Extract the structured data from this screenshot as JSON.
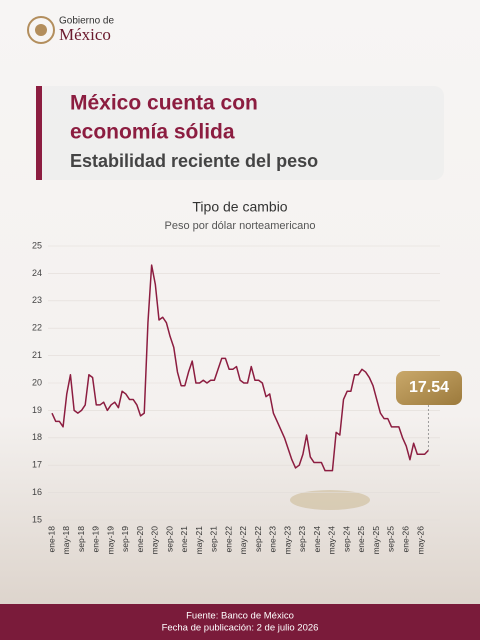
{
  "header": {
    "logo_line1": "Gobierno de",
    "logo_line2": "México",
    "title_line1": "México cuenta con",
    "title_line2": "economía sólida",
    "subtitle": "Estabilidad reciente del peso"
  },
  "chart_data": {
    "type": "line",
    "title": "Tipo de cambio",
    "subtitle": "Peso por dólar norteamericano",
    "categories": [
      "ene-18",
      null,
      null,
      null,
      "may-18",
      null,
      null,
      null,
      "sep-18",
      null,
      null,
      null,
      "ene-19",
      null,
      null,
      null,
      "may-19",
      null,
      null,
      null,
      "sep-19",
      null,
      null,
      null,
      "ene-20",
      null,
      null,
      null,
      "may-20",
      null,
      null,
      null,
      "sep-20",
      null,
      null,
      null,
      "ene-21",
      null,
      null,
      null,
      "may-21",
      null,
      null,
      null,
      "sep-21",
      null,
      null,
      null,
      "ene-22",
      null,
      null,
      null,
      "may-22",
      null,
      null,
      null,
      "sep-22",
      null,
      null,
      null,
      "ene-23",
      null,
      null,
      null,
      "may-23",
      null,
      null,
      null,
      "sep-23",
      null,
      null,
      null,
      "ene-24",
      null,
      null,
      null,
      "may-24",
      null,
      null,
      null,
      "sep-24",
      null,
      null,
      null,
      "ene-25",
      null,
      null,
      null,
      "may-25",
      null,
      null,
      null,
      "sep-25",
      null,
      null,
      null,
      "ene-26",
      null,
      null,
      null,
      "may-26",
      null,
      null
    ],
    "values": [
      18.9,
      18.6,
      18.6,
      18.4,
      19.6,
      20.3,
      19.0,
      18.9,
      19.0,
      19.2,
      20.3,
      20.2,
      19.2,
      19.2,
      19.3,
      19.0,
      19.2,
      19.3,
      19.1,
      19.7,
      19.6,
      19.4,
      19.4,
      19.2,
      18.8,
      18.9,
      22.2,
      24.3,
      23.6,
      22.3,
      22.4,
      22.2,
      21.7,
      21.3,
      20.4,
      19.9,
      19.9,
      20.4,
      20.8,
      20.0,
      20.0,
      20.1,
      20.0,
      20.1,
      20.1,
      20.5,
      20.9,
      20.9,
      20.5,
      20.5,
      20.6,
      20.1,
      20.0,
      20.0,
      20.6,
      20.1,
      20.1,
      20.0,
      19.5,
      19.6,
      18.9,
      18.6,
      18.3,
      18.0,
      17.6,
      17.2,
      16.9,
      17.0,
      17.4,
      18.1,
      17.3,
      17.1,
      17.1,
      17.1,
      16.8,
      16.8,
      16.8,
      18.2,
      18.1,
      19.4,
      19.7,
      19.7,
      20.3,
      20.3,
      20.5,
      20.4,
      20.2,
      19.9,
      19.4,
      18.9,
      18.7,
      18.7,
      18.4,
      18.4,
      18.4,
      18.0,
      17.7,
      17.2,
      17.8,
      17.4,
      17.4,
      17.4,
      17.54
    ],
    "color": "#8c1d40",
    "ylim": [
      15,
      25
    ],
    "yticks": [
      15,
      16,
      17,
      18,
      19,
      20,
      21,
      22,
      23,
      24,
      25
    ],
    "grid": true
  },
  "footer": {
    "source": "Fuente: Banco de México",
    "date": "Fecha de publicación: 2 de julio 2026"
  }
}
